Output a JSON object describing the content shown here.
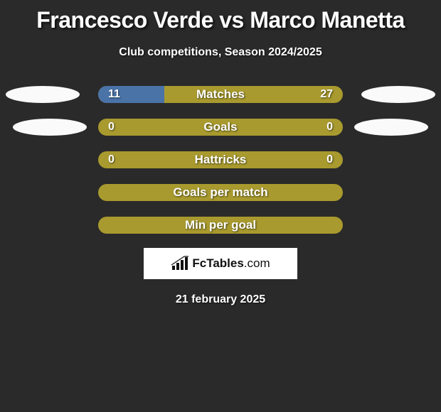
{
  "title": "Francesco Verde vs Marco Manetta",
  "subtitle": "Club competitions, Season 2024/2025",
  "date": "21 february 2025",
  "logo": {
    "brand_bold": "FcTables",
    "brand_light": ".com"
  },
  "colors": {
    "background": "#2a2a2a",
    "bar_base": "#a89a2e",
    "fill_blue": "#4a73a8",
    "ellipse": "#fafafa",
    "text": "#ffffff"
  },
  "stats": [
    {
      "label": "Matches",
      "left_val": "11",
      "right_val": "27",
      "show_values": true,
      "show_ellipses": true,
      "left_fill_pct": 27,
      "right_fill_pct": 0,
      "left_fill_color": "#4a73a8",
      "right_fill_color": "#4a73a8"
    },
    {
      "label": "Goals",
      "left_val": "0",
      "right_val": "0",
      "show_values": true,
      "show_ellipses": true,
      "left_fill_pct": 0,
      "right_fill_pct": 0,
      "left_fill_color": "#4a73a8",
      "right_fill_color": "#4a73a8",
      "ellipse_inset": true
    },
    {
      "label": "Hattricks",
      "left_val": "0",
      "right_val": "0",
      "show_values": true,
      "show_ellipses": false,
      "left_fill_pct": 0,
      "right_fill_pct": 0,
      "left_fill_color": "#4a73a8",
      "right_fill_color": "#4a73a8"
    },
    {
      "label": "Goals per match",
      "left_val": "",
      "right_val": "",
      "show_values": false,
      "show_ellipses": false,
      "left_fill_pct": 0,
      "right_fill_pct": 0,
      "left_fill_color": "#4a73a8",
      "right_fill_color": "#4a73a8"
    },
    {
      "label": "Min per goal",
      "left_val": "",
      "right_val": "",
      "show_values": false,
      "show_ellipses": false,
      "left_fill_pct": 0,
      "right_fill_pct": 0,
      "left_fill_color": "#4a73a8",
      "right_fill_color": "#4a73a8"
    }
  ]
}
